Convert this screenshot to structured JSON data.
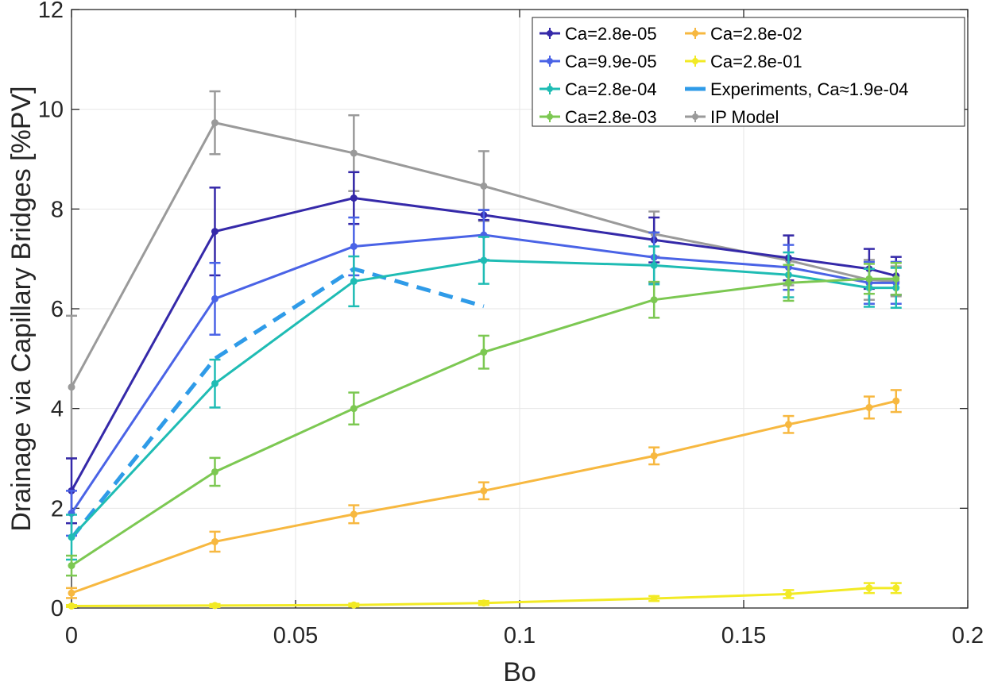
{
  "chart_data": {
    "type": "line",
    "title": "",
    "xlabel": "Bo",
    "ylabel": "Drainage via Capillary Bridges [%PV]",
    "xlim": [
      0,
      0.2
    ],
    "ylim": [
      0,
      12
    ],
    "xticks": [
      "0",
      "0.05",
      "0.1",
      "0.15",
      "0.2"
    ],
    "yticks": [
      "0",
      "2",
      "4",
      "6",
      "8",
      "10",
      "12"
    ],
    "grid": true,
    "legend_placement": "top-right",
    "series": [
      {
        "name": "Ca=2.8e-05",
        "color": "#3529a9",
        "style": "solid",
        "x": [
          0,
          0.032,
          0.063,
          0.092,
          0.13,
          0.16,
          0.178,
          0.184
        ],
        "y": [
          2.35,
          7.55,
          8.22,
          7.88,
          7.38,
          7.02,
          6.8,
          6.66
        ],
        "err": [
          0.65,
          0.88,
          0.52,
          0.1,
          0.45,
          0.45,
          0.4,
          0.38
        ]
      },
      {
        "name": "Ca=9.9e-05",
        "color": "#4a63e6",
        "style": "solid",
        "x": [
          0,
          0.032,
          0.063,
          0.092,
          0.13,
          0.16,
          0.178,
          0.184
        ],
        "y": [
          1.9,
          6.2,
          7.25,
          7.48,
          7.03,
          6.83,
          6.52,
          6.52
        ],
        "err": [
          0.45,
          0.72,
          0.58,
          0.5,
          0.5,
          0.45,
          0.42,
          0.42
        ]
      },
      {
        "name": "Ca=2.8e-04",
        "color": "#1fbcb4",
        "style": "solid",
        "x": [
          0,
          0.032,
          0.063,
          0.092,
          0.13,
          0.16,
          0.178,
          0.184
        ],
        "y": [
          1.42,
          4.5,
          6.55,
          6.97,
          6.87,
          6.68,
          6.42,
          6.42
        ],
        "err": [
          0.45,
          0.48,
          0.5,
          0.47,
          0.38,
          0.45,
          0.38,
          0.4
        ]
      },
      {
        "name": "Ca=2.8e-03",
        "color": "#7cc852",
        "style": "solid",
        "x": [
          0,
          0.032,
          0.063,
          0.092,
          0.13,
          0.16,
          0.178,
          0.184
        ],
        "y": [
          0.85,
          2.73,
          4.0,
          5.13,
          6.18,
          6.52,
          6.6,
          6.6
        ],
        "err": [
          0.2,
          0.28,
          0.32,
          0.33,
          0.36,
          0.36,
          0.3,
          0.32
        ]
      },
      {
        "name": "Ca=2.8e-02",
        "color": "#f7b840",
        "style": "solid",
        "x": [
          0,
          0.032,
          0.063,
          0.092,
          0.13,
          0.16,
          0.178,
          0.184
        ],
        "y": [
          0.3,
          1.33,
          1.88,
          2.35,
          3.05,
          3.68,
          4.02,
          4.15
        ],
        "err": [
          0.1,
          0.2,
          0.18,
          0.17,
          0.17,
          0.17,
          0.22,
          0.22
        ]
      },
      {
        "name": "Ca=2.8e-01",
        "color": "#f2ea25",
        "style": "solid",
        "x": [
          0,
          0.032,
          0.063,
          0.092,
          0.13,
          0.16,
          0.178,
          0.184
        ],
        "y": [
          0.04,
          0.05,
          0.06,
          0.1,
          0.19,
          0.28,
          0.4,
          0.4
        ],
        "err": [
          0.02,
          0.03,
          0.03,
          0.04,
          0.05,
          0.08,
          0.1,
          0.1
        ]
      },
      {
        "name": "Experiments, Ca≈1.9e-04",
        "color": "#2f9be8",
        "style": "dashed",
        "x": [
          0,
          0.032,
          0.063,
          0.092
        ],
        "y": [
          1.4,
          5.0,
          6.8,
          6.05
        ],
        "err": []
      },
      {
        "name": "IP Model",
        "color": "#9a9a9a",
        "style": "solid",
        "x": [
          0,
          0.032,
          0.063,
          0.092,
          0.13,
          0.16,
          0.178,
          0.184
        ],
        "y": [
          4.43,
          9.73,
          9.12,
          8.46,
          7.5,
          6.97,
          6.58,
          6.55
        ],
        "err": [
          1.43,
          0.63,
          0.76,
          0.7,
          0.45,
          0.5,
          0.4,
          0.3
        ]
      }
    ],
    "legend_layout": [
      [
        0,
        4
      ],
      [
        1,
        5
      ],
      [
        2,
        6
      ],
      [
        3,
        7
      ]
    ]
  }
}
